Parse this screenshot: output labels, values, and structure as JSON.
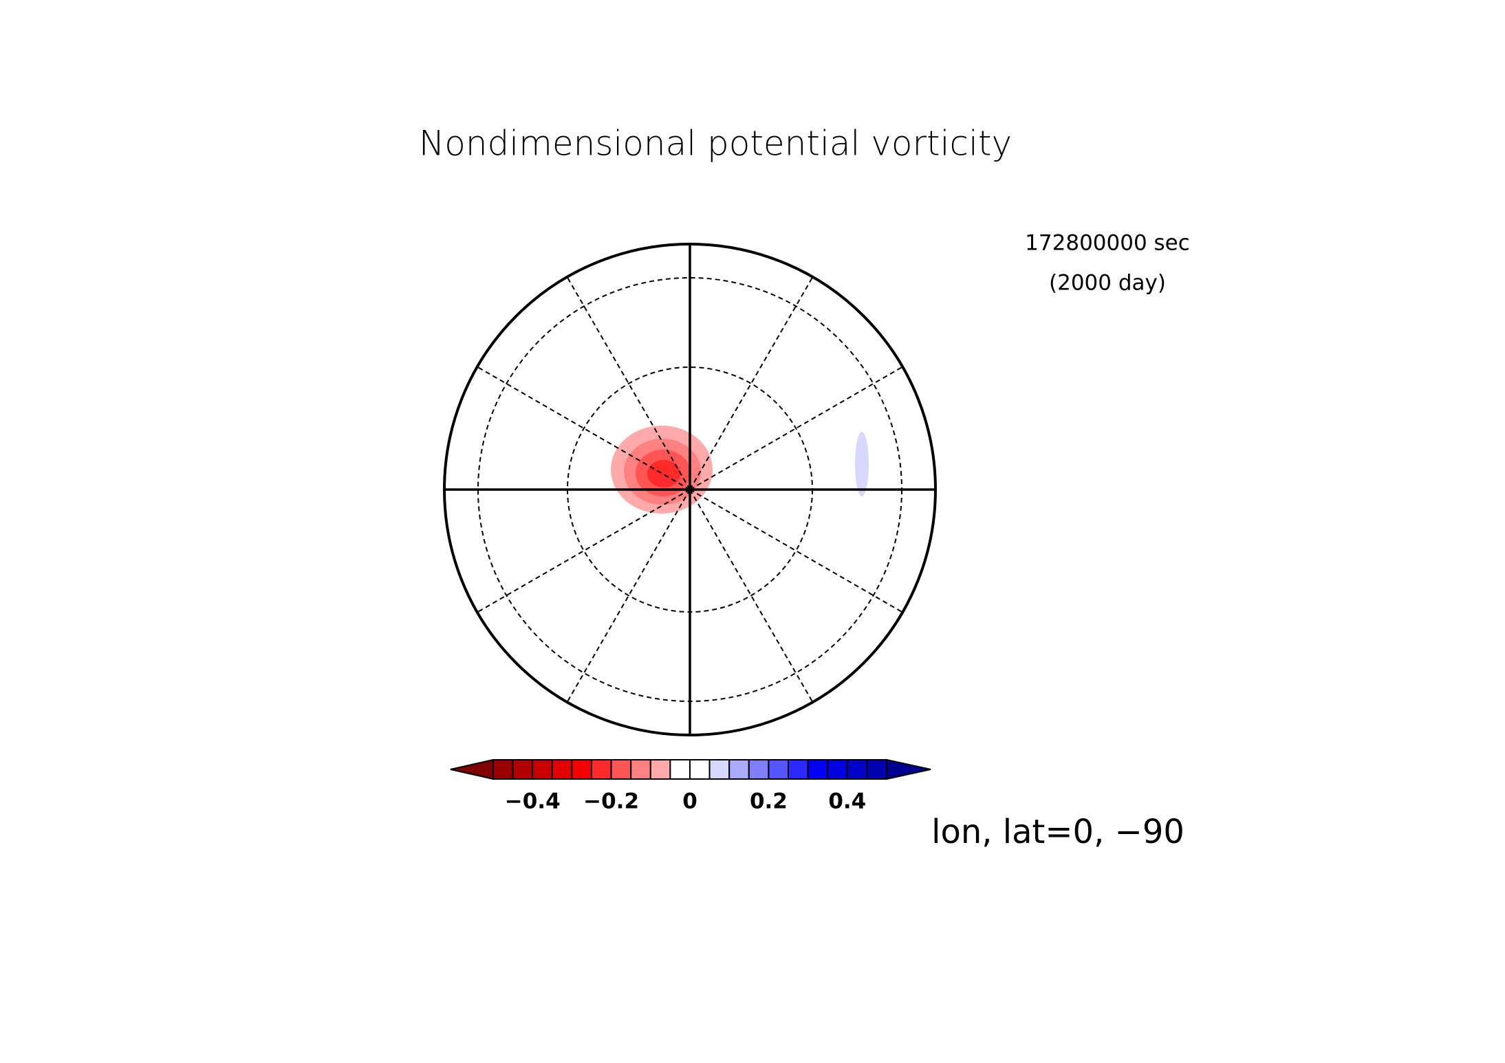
{
  "chart_data": {
    "type": "contour",
    "title": "Nondimensional potential vorticity",
    "annotations": [
      "172800000 sec",
      "(2000 day)"
    ],
    "xlabel": "lon, lat=0, −90",
    "colorbar": {
      "levels": [
        -0.5,
        -0.45,
        -0.4,
        -0.35,
        -0.3,
        -0.25,
        -0.2,
        -0.15,
        -0.1,
        -0.05,
        0,
        0.05,
        0.1,
        0.15,
        0.2,
        0.25,
        0.3,
        0.35,
        0.4,
        0.45,
        0.5
      ],
      "colors": [
        "#800000",
        "#990000",
        "#b00000",
        "#c80000",
        "#e00000",
        "#f50000",
        "#ff2a2a",
        "#ff5555",
        "#ff8080",
        "#ffaaaa",
        "#ffffff",
        "#ffffff",
        "#d8d8ff",
        "#aaaaff",
        "#8080ff",
        "#5555ff",
        "#2a2aff",
        "#0000f5",
        "#0000e0",
        "#0000c8",
        "#0000b0",
        "#000090"
      ],
      "ticks": [
        {
          "value": -0.4,
          "label": "−0.4"
        },
        {
          "value": -0.2,
          "label": "−0.2"
        },
        0,
        0.2,
        0.4
      ]
    }
  }
}
